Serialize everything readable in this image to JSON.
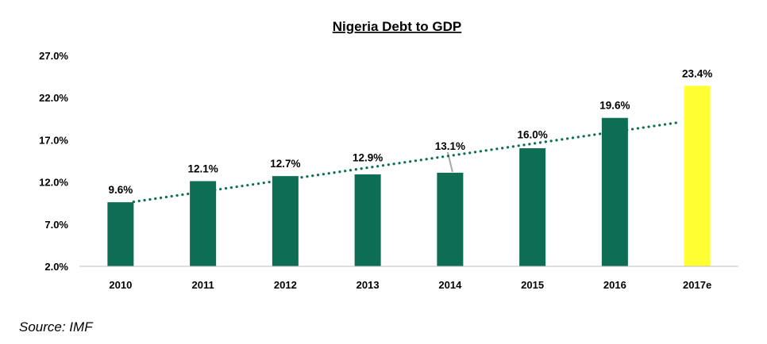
{
  "chart_data": {
    "type": "bar",
    "title": "Nigeria Debt to GDP",
    "categories": [
      "2010",
      "2011",
      "2012",
      "2013",
      "2014",
      "2015",
      "2016",
      "2017e"
    ],
    "values": [
      9.6,
      12.1,
      12.7,
      12.9,
      13.1,
      16.0,
      19.6,
      23.4
    ],
    "data_labels": [
      "9.6%",
      "12.1%",
      "12.7%",
      "12.9%",
      "13.1%",
      "16.0%",
      "19.6%",
      "23.4%"
    ],
    "ylim": [
      2.0,
      27.0
    ],
    "yticks": [
      2.0,
      7.0,
      12.0,
      17.0,
      22.0,
      27.0
    ],
    "ytick_labels": [
      "2.0%",
      "7.0%",
      "12.0%",
      "17.0%",
      "22.0%",
      "27.0%"
    ],
    "xlabel": "",
    "ylabel": "",
    "grid": false,
    "legend": "none",
    "trendline": {
      "type": "linear",
      "style": "dotted",
      "color": "#0E6E55"
    },
    "colors": {
      "bar": "#0E6E55",
      "highlight_bar": "#FFFF33",
      "highlight_index": 7,
      "leader_line": "#A6A6A6"
    }
  },
  "source_note": "Source: IMF"
}
